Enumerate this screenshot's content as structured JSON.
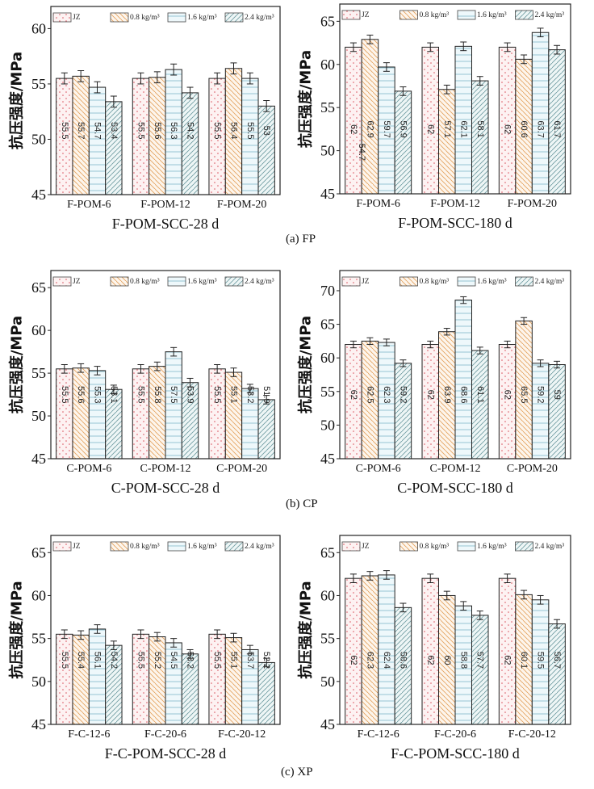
{
  "figure": {
    "captions": [
      "(a) FP",
      "(b) CP",
      "(c) XP"
    ]
  },
  "legend": [
    "JZ",
    "0.8 kg/m³",
    "1.6 kg/m³",
    "2.4 kg/m³"
  ],
  "series_styles": [
    {
      "name": "JZ",
      "pattern": "dots",
      "fill": "#fdf2f2",
      "stroke": "#d9535f"
    },
    {
      "name": "0.8 kg/m³",
      "pattern": "backslash",
      "fill": "#fdf5ec",
      "stroke": "#e3a15c"
    },
    {
      "name": "1.6 kg/m³",
      "pattern": "horizontal",
      "fill": "#eef8fb",
      "stroke": "#7fb8c9"
    },
    {
      "name": "2.4 kg/m³",
      "pattern": "slash",
      "fill": "#eef6f6",
      "stroke": "#6d9aa0"
    }
  ],
  "chart_data": [
    {
      "type": "bar",
      "group": "(a) FP",
      "title": "",
      "xlabel": "F-POM-SCC-28 d",
      "ylabel": "抗压强度/MPa",
      "ylim": [
        45,
        62
      ],
      "yticks": [
        45,
        50,
        55,
        60
      ],
      "categories": [
        "F-POM-6",
        "F-POM-12",
        "F-POM-20"
      ],
      "legend_position": "top",
      "series": [
        {
          "name": "JZ",
          "values": [
            55.5,
            55.5,
            55.5
          ],
          "labels": [
            "55.5",
            "55.5",
            "55.5"
          ]
        },
        {
          "name": "0.8 kg/m³",
          "values": [
            55.7,
            55.6,
            56.4
          ],
          "labels": [
            "55.7",
            "55.6",
            "56.4"
          ]
        },
        {
          "name": "1.6 kg/m³",
          "values": [
            54.7,
            56.3,
            55.5
          ],
          "labels": [
            "54.7",
            "56.3",
            "55.5"
          ]
        },
        {
          "name": "2.4 kg/m³",
          "values": [
            53.4,
            54.2,
            53.0
          ],
          "labels": [
            "53.4",
            "54.2",
            "53"
          ]
        }
      ],
      "hidden_label_note": "1.6 kg/m³ F-POM-6 label not printed",
      "error": 0.5
    },
    {
      "type": "bar",
      "group": "(a) FP",
      "title": "",
      "xlabel": "F-POM-SCC-180 d",
      "ylabel": "抗压强度/MPa",
      "ylim": [
        45,
        67
      ],
      "yticks": [
        45,
        50,
        55,
        60,
        65
      ],
      "categories": [
        "F-POM-6",
        "F-POM-12",
        "F-POM-20"
      ],
      "legend_position": "top",
      "series": [
        {
          "name": "JZ",
          "values": [
            62,
            62,
            62
          ],
          "labels": [
            "62",
            "62",
            "62"
          ]
        },
        {
          "name": "0.8 kg/m³",
          "values": [
            62.9,
            57.1,
            60.6
          ],
          "labels": [
            "62.9",
            "57.1",
            "60.6"
          ]
        },
        {
          "name": "1.6 kg/m³",
          "values": [
            59.7,
            62.1,
            63.7
          ],
          "labels": [
            "59.7",
            "62.1",
            "63.7"
          ]
        },
        {
          "name": "2.4 kg/m³",
          "values": [
            56.9,
            58.1,
            61.7
          ],
          "labels": [
            "56.9",
            "58.1",
            "61.7"
          ]
        }
      ],
      "annotations": [
        {
          "text": "54.7",
          "near": "F-POM-6 JZ/0.8 kg/m³ boundary"
        }
      ],
      "error": 0.5
    },
    {
      "type": "bar",
      "group": "(b) CP",
      "title": "",
      "xlabel": "C-POM-SCC-28 d",
      "ylabel": "抗压强度/MPa",
      "ylim": [
        45,
        67
      ],
      "yticks": [
        45,
        50,
        55,
        60,
        65
      ],
      "categories": [
        "C-POM-6",
        "C-POM-12",
        "C-POM-20"
      ],
      "legend_position": "top",
      "series": [
        {
          "name": "JZ",
          "values": [
            55.5,
            55.5,
            55.5
          ],
          "labels": [
            "55.5",
            "55.5",
            "55.5"
          ]
        },
        {
          "name": "0.8 kg/m³",
          "values": [
            55.6,
            55.8,
            55.1
          ],
          "labels": [
            "55.6",
            "55.8",
            "55.1"
          ]
        },
        {
          "name": "1.6 kg/m³",
          "values": [
            55.3,
            57.5,
            53.2
          ],
          "labels": [
            "55.3",
            "57.5",
            "53.2"
          ]
        },
        {
          "name": "2.4 kg/m³",
          "values": [
            53.1,
            53.9,
            51.9
          ],
          "labels": [
            "53.1",
            "53.9",
            "51.9"
          ]
        }
      ],
      "error": 0.5
    },
    {
      "type": "bar",
      "group": "(b) CP",
      "title": "",
      "xlabel": "C-POM-SCC-180 d",
      "ylabel": "抗压强度/MPa",
      "ylim": [
        45,
        73
      ],
      "yticks": [
        45,
        50,
        55,
        60,
        65,
        70
      ],
      "categories": [
        "C-POM-6",
        "C-POM-12",
        "C-POM-20"
      ],
      "legend_position": "top",
      "series": [
        {
          "name": "JZ",
          "values": [
            62,
            62,
            62
          ],
          "labels": [
            "62",
            "62",
            "62"
          ]
        },
        {
          "name": "0.8 kg/m³",
          "values": [
            62.5,
            63.9,
            65.5
          ],
          "labels": [
            "62.5",
            "63.9",
            "65.5"
          ]
        },
        {
          "name": "1.6 kg/m³",
          "values": [
            62.3,
            68.6,
            59.2
          ],
          "labels": [
            "62.3",
            "68.6",
            "59.2"
          ]
        },
        {
          "name": "2.4 kg/m³",
          "values": [
            59.2,
            61.1,
            59.0
          ],
          "labels": [
            "59.2",
            "61.1",
            "59"
          ]
        }
      ],
      "error": 0.5
    },
    {
      "type": "bar",
      "group": "(c) XP",
      "title": "",
      "xlabel": "F-C-POM-SCC-28 d",
      "ylabel": "抗压强度/MPa",
      "ylim": [
        45,
        67
      ],
      "yticks": [
        45,
        50,
        55,
        60,
        65
      ],
      "categories": [
        "F-C-12-6",
        "F-C-20-6",
        "F-C-20-12"
      ],
      "legend_position": "top",
      "series": [
        {
          "name": "JZ",
          "values": [
            55.5,
            55.5,
            55.5
          ],
          "labels": [
            "55.5",
            "55.5",
            "55.5"
          ]
        },
        {
          "name": "0.8 kg/m³",
          "values": [
            55.4,
            55.2,
            55.1
          ],
          "labels": [
            "55.4",
            "55.2",
            "55.1"
          ]
        },
        {
          "name": "1.6 kg/m³",
          "values": [
            56.1,
            54.5,
            53.7
          ],
          "labels": [
            "56.1",
            "54.5",
            "53.7"
          ]
        },
        {
          "name": "2.4 kg/m³",
          "values": [
            54.2,
            53.2,
            52.2
          ],
          "labels": [
            "54.2",
            "53.2",
            "52.2"
          ]
        }
      ],
      "error": 0.5
    },
    {
      "type": "bar",
      "group": "(c) XP",
      "title": "",
      "xlabel": "F-C-POM-SCC-180 d",
      "ylabel": "抗压强度/MPa",
      "ylim": [
        45,
        67
      ],
      "yticks": [
        45,
        50,
        55,
        60,
        65
      ],
      "categories": [
        "F-C-12-6",
        "F-C-20-6",
        "F-C-20-12"
      ],
      "legend_position": "top",
      "series": [
        {
          "name": "JZ",
          "values": [
            62,
            62,
            62
          ],
          "labels": [
            "62",
            "62",
            "62"
          ]
        },
        {
          "name": "0.8 kg/m³",
          "values": [
            62.3,
            60.0,
            60.1
          ],
          "labels": [
            "62.3",
            "60",
            "60.1"
          ]
        },
        {
          "name": "1.6 kg/m³",
          "values": [
            62.4,
            58.8,
            59.5
          ],
          "labels": [
            "62.4",
            "58.8",
            "59.5"
          ]
        },
        {
          "name": "2.4 kg/m³",
          "values": [
            58.6,
            57.7,
            56.7
          ],
          "labels": [
            "58.6",
            "57.7",
            "56.7"
          ]
        }
      ],
      "error": 0.5
    }
  ]
}
